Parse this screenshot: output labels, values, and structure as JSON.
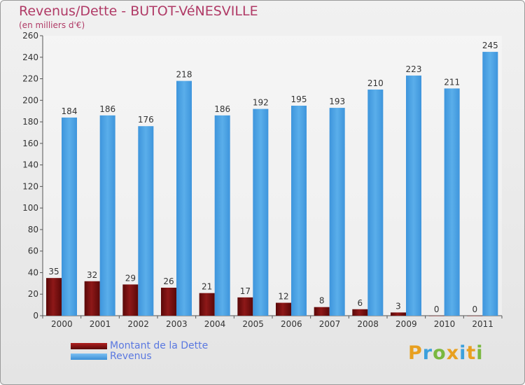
{
  "header": {
    "title": "Revenus/Dette - BUTOT-VéNESVILLE",
    "subtitle": "(en milliers d'€)"
  },
  "chart_data": {
    "type": "bar",
    "categories": [
      "2000",
      "2001",
      "2002",
      "2003",
      "2004",
      "2005",
      "2006",
      "2007",
      "2008",
      "2009",
      "2010",
      "2011"
    ],
    "series": [
      {
        "name": "Montant de la Dette",
        "color": "#7a1010",
        "values": [
          35,
          32,
          29,
          26,
          21,
          17,
          12,
          8,
          6,
          3,
          0,
          0
        ]
      },
      {
        "name": "Revenus",
        "color": "#4ea3e6",
        "values": [
          184,
          186,
          176,
          218,
          186,
          192,
          195,
          193,
          210,
          223,
          211,
          245
        ]
      }
    ],
    "ylim": [
      0,
      260
    ],
    "yticks": [
      0,
      20,
      40,
      60,
      80,
      100,
      120,
      140,
      160,
      180,
      200,
      220,
      240,
      260
    ],
    "grid": false,
    "legend_position": "bottom-left"
  },
  "legend": {
    "items": [
      {
        "label": "Montant de la Dette",
        "color": "#7a1010"
      },
      {
        "label": "Revenus",
        "color": "#4ea3e6"
      }
    ]
  },
  "logo": {
    "letters": [
      "P",
      "r",
      "o",
      "x",
      "i",
      "t",
      "i"
    ],
    "colors": [
      "#e8a020",
      "#3ca0dc",
      "#7ab840",
      "#e8a020",
      "#3ca0dc",
      "#e8a020",
      "#7ab840"
    ]
  }
}
